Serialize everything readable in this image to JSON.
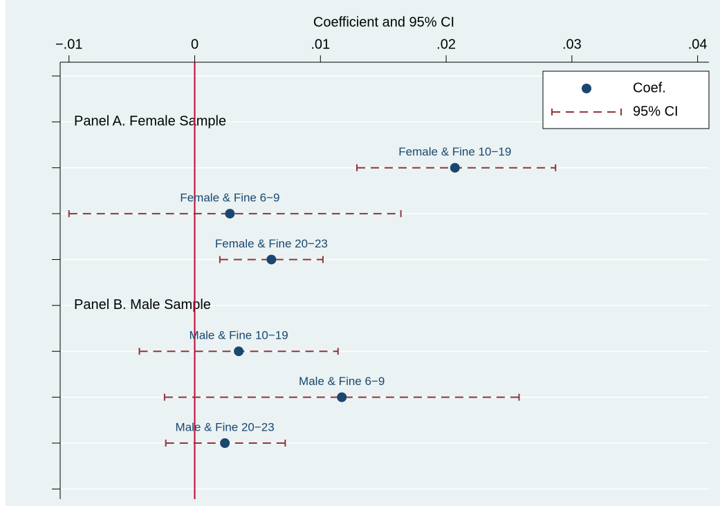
{
  "chart_data": {
    "type": "coefplot",
    "x_label": "Coefficient and 95% CI",
    "xlim": [
      -0.0107,
      0.0409
    ],
    "xticks": [
      {
        "value": -0.01,
        "label": "−.01"
      },
      0,
      {
        "value": 0.01,
        "label": ".01"
      },
      {
        "value": 0.02,
        "label": ".02"
      },
      {
        "value": 0.03,
        "label": ".03"
      },
      {
        "value": 0.04,
        "label": ".04"
      }
    ],
    "ylim": [
      0.7,
      10.22
    ],
    "yticks": [
      1,
      2,
      3,
      4,
      5,
      6,
      7,
      8,
      9,
      10
    ],
    "grid": true,
    "xline": 0,
    "xline_color": "#c10534",
    "legend": "top-right",
    "panels": [
      {
        "label": "Panel A. Female Sample",
        "y": 2
      },
      {
        "label": "Panel B. Male Sample",
        "y": 6
      }
    ],
    "points": {
      "name": "Coef.",
      "color": "#1a476f",
      "labels": [
        "Female & Fine 10−19",
        "Female & Fine 6−9",
        "Female & Fine 20−23",
        "Male & Fine 10−19",
        "Male & Fine 6−9",
        "Male & Fine 20−23"
      ],
      "y": [
        3,
        4,
        5,
        7,
        8,
        9
      ],
      "values": [
        0.0207,
        0.0028,
        0.0061,
        0.0035,
        0.0117,
        0.0024
      ]
    },
    "ci": {
      "name": "95% CI",
      "color": "#90353b",
      "lower": [
        0.0129,
        -0.01,
        0.002,
        -0.0044,
        -0.0024,
        -0.0023
      ],
      "upper": [
        0.0287,
        0.0164,
        0.0102,
        0.0114,
        0.0258,
        0.0072
      ]
    }
  }
}
